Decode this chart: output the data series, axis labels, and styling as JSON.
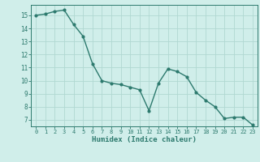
{
  "x": [
    0,
    1,
    2,
    3,
    4,
    5,
    6,
    7,
    8,
    9,
    10,
    11,
    12,
    13,
    14,
    15,
    16,
    17,
    18,
    19,
    20,
    21,
    22,
    23
  ],
  "y": [
    15.0,
    15.1,
    15.3,
    15.4,
    14.3,
    13.4,
    11.3,
    10.0,
    9.8,
    9.7,
    9.5,
    9.3,
    7.7,
    9.8,
    10.9,
    10.7,
    10.3,
    9.1,
    8.5,
    8.0,
    7.1,
    7.2,
    7.2,
    6.6
  ],
  "line_color": "#2d7a6e",
  "bg_color": "#d0eeea",
  "grid_color": "#b0d8d2",
  "xlabel": "Humidex (Indice chaleur)",
  "xlim": [
    -0.5,
    23.5
  ],
  "ylim": [
    6.5,
    15.8
  ],
  "yticks": [
    7,
    8,
    9,
    10,
    11,
    12,
    13,
    14,
    15
  ],
  "xticks": [
    0,
    1,
    2,
    3,
    4,
    5,
    6,
    7,
    8,
    9,
    10,
    11,
    12,
    13,
    14,
    15,
    16,
    17,
    18,
    19,
    20,
    21,
    22,
    23
  ]
}
